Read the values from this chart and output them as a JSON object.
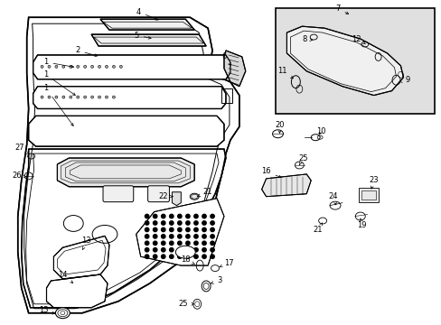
{
  "bg_color": "#ffffff",
  "line_color": "#000000",
  "inset_bg": "#e0e0e0",
  "fig_width": 4.89,
  "fig_height": 3.6,
  "dpi": 100,
  "font_size": 6.0
}
